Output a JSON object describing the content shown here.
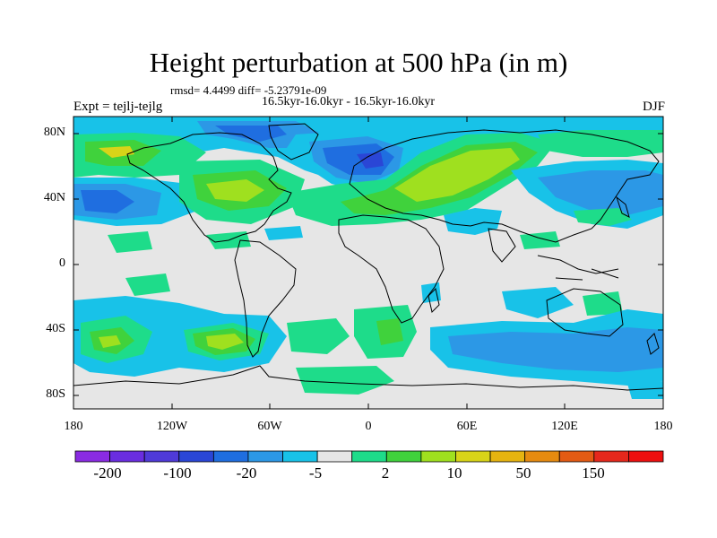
{
  "title": "Height perturbation at 500 hPa (in m)",
  "stats_line": "rmsd= 4.4499 diff= -5.23791e-09",
  "period_line": "16.5kyr-16.0kyr - 16.5kyr-16.0kyr",
  "experiment_label": "Expt = tejlj-tejlg",
  "season_label": "DJF",
  "lat_ticks": [
    "80N",
    "40N",
    "0",
    "40S",
    "80S"
  ],
  "lon_ticks": [
    "180",
    "120W",
    "60W",
    "0",
    "60E",
    "120E",
    "180"
  ],
  "colorbar": {
    "colors": [
      "#8a2be2",
      "#6a2de0",
      "#4f3ad8",
      "#2a46d6",
      "#1f6ee0",
      "#2c98e6",
      "#18c2e8",
      "#e6e6e6",
      "#1edc8a",
      "#40d23c",
      "#9fe01f",
      "#d8d418",
      "#e6b410",
      "#e68b10",
      "#e35b14",
      "#e5281c",
      "#ee0f0f"
    ],
    "labels": [
      "-200",
      "-100",
      "-20",
      "-5",
      "2",
      "10",
      "50",
      "150"
    ]
  },
  "field_colors": {
    "background": "#e6e6e6",
    "light_blue": "#18c2e8",
    "mid_blue": "#2c98e6",
    "blue": "#1f6ee0",
    "dark_blue": "#2a46d6",
    "teal": "#1edc8a",
    "green": "#40d23c",
    "yellow_green": "#9fe01f",
    "yellow": "#d8d418"
  }
}
